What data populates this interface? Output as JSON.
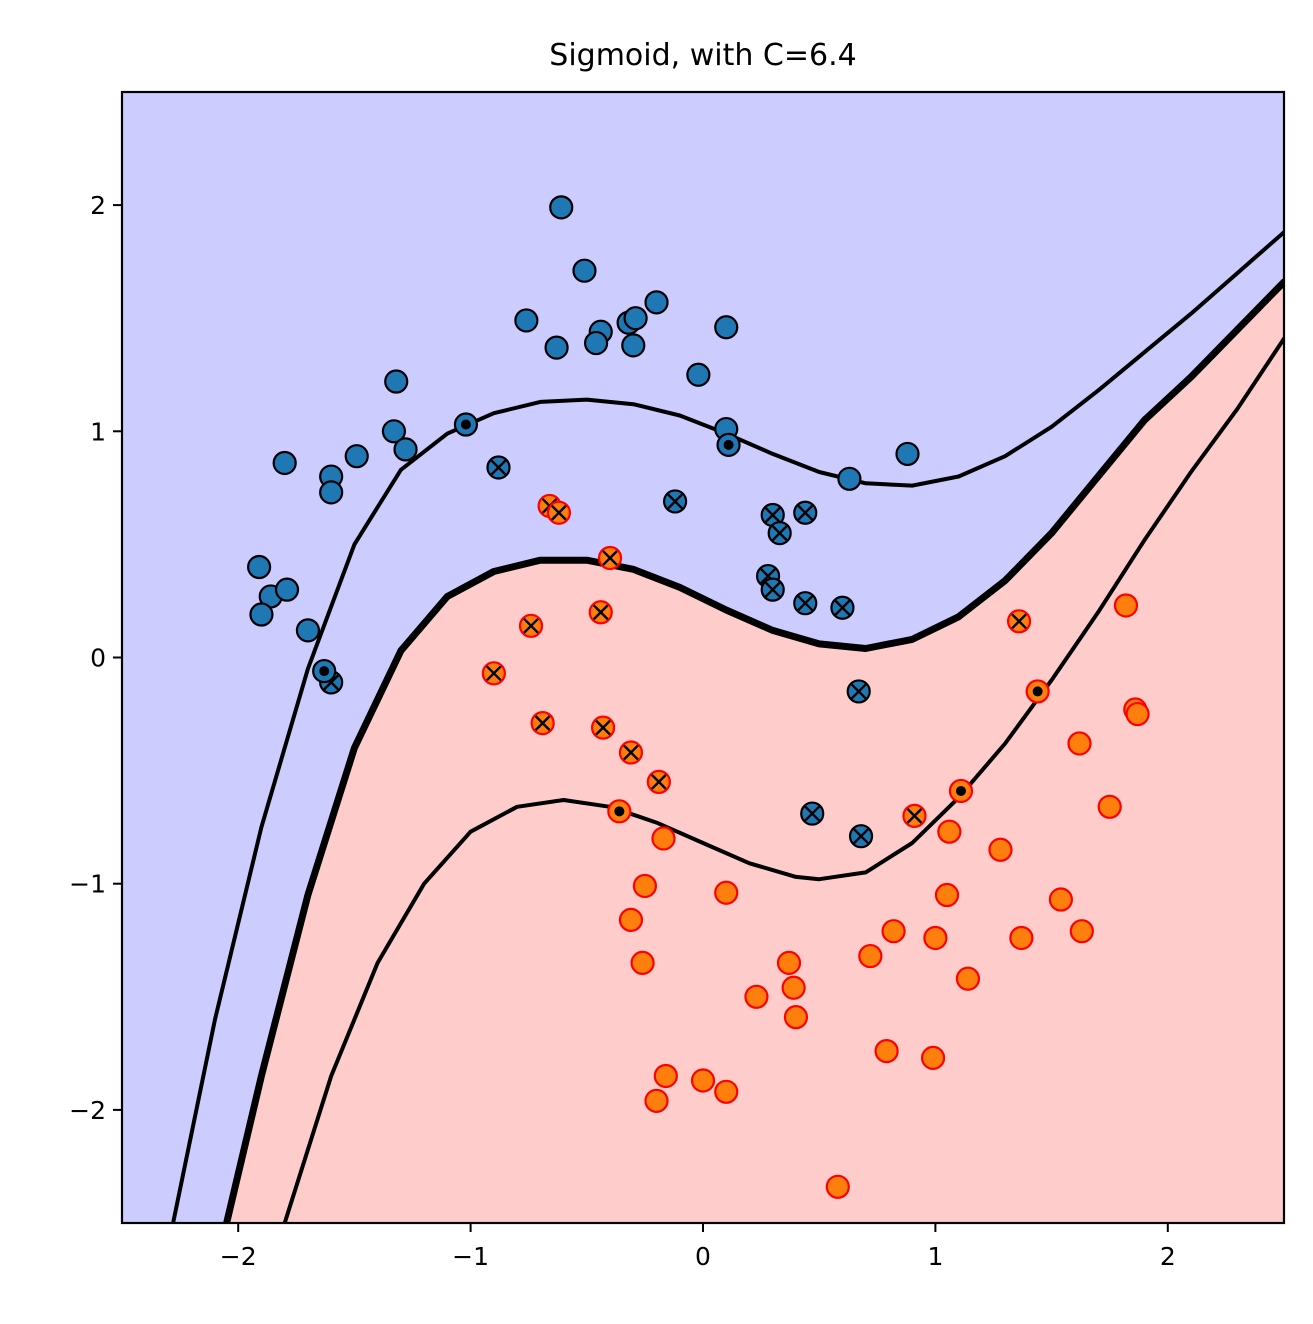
{
  "chart_data": {
    "type": "scatter",
    "title": "Sigmoid, with C=6.4",
    "xlabel": "",
    "ylabel": "",
    "xlim": [
      -2.5,
      2.5
    ],
    "ylim": [
      -2.5,
      2.5
    ],
    "x_ticks": [
      -2,
      -1,
      0,
      1,
      2
    ],
    "y_ticks": [
      -2,
      -1,
      0,
      1,
      2
    ],
    "x_tick_labels": [
      "−2",
      "−1",
      "0",
      "1",
      "2"
    ],
    "y_tick_labels": [
      "−2",
      "−1",
      "0",
      "1",
      "2"
    ],
    "grid": false,
    "colors": {
      "region_class_0": "#ccccff",
      "region_class_1": "#ffcccc",
      "class_0_point": "#1f77b4",
      "class_0_edge": "#000000",
      "class_1_point": "#ff7f0e",
      "class_1_edge": "#ff0000",
      "boundary": "#000000"
    },
    "regions": [
      {
        "class": 0,
        "side": "upper-left of decision boundary"
      },
      {
        "class": 1,
        "side": "lower-right of decision boundary"
      }
    ],
    "curves": [
      {
        "role": "margin-upper",
        "style": "thin",
        "points": [
          [
            -2.28,
            -2.5
          ],
          [
            -2.1,
            -1.6
          ],
          [
            -1.9,
            -0.75
          ],
          [
            -1.7,
            -0.05
          ],
          [
            -1.5,
            0.5
          ],
          [
            -1.3,
            0.83
          ],
          [
            -1.1,
            0.99
          ],
          [
            -0.9,
            1.08
          ],
          [
            -0.7,
            1.13
          ],
          [
            -0.5,
            1.14
          ],
          [
            -0.3,
            1.12
          ],
          [
            -0.1,
            1.07
          ],
          [
            0.1,
            0.99
          ],
          [
            0.3,
            0.9
          ],
          [
            0.5,
            0.82
          ],
          [
            0.7,
            0.77
          ],
          [
            0.9,
            0.76
          ],
          [
            1.1,
            0.8
          ],
          [
            1.3,
            0.89
          ],
          [
            1.5,
            1.02
          ],
          [
            1.7,
            1.18
          ],
          [
            1.9,
            1.35
          ],
          [
            2.1,
            1.52
          ],
          [
            2.3,
            1.7
          ],
          [
            2.5,
            1.88
          ]
        ]
      },
      {
        "role": "decision-boundary",
        "style": "thick",
        "points": [
          [
            -2.05,
            -2.5
          ],
          [
            -1.9,
            -1.85
          ],
          [
            -1.7,
            -1.05
          ],
          [
            -1.5,
            -0.4
          ],
          [
            -1.3,
            0.03
          ],
          [
            -1.1,
            0.27
          ],
          [
            -0.9,
            0.38
          ],
          [
            -0.7,
            0.43
          ],
          [
            -0.5,
            0.43
          ],
          [
            -0.3,
            0.39
          ],
          [
            -0.1,
            0.31
          ],
          [
            0.1,
            0.21
          ],
          [
            0.3,
            0.12
          ],
          [
            0.5,
            0.06
          ],
          [
            0.7,
            0.04
          ],
          [
            0.9,
            0.08
          ],
          [
            1.1,
            0.18
          ],
          [
            1.3,
            0.34
          ],
          [
            1.5,
            0.55
          ],
          [
            1.7,
            0.8
          ],
          [
            1.9,
            1.05
          ],
          [
            2.1,
            1.24
          ],
          [
            2.3,
            1.45
          ],
          [
            2.5,
            1.66
          ]
        ]
      },
      {
        "role": "margin-lower",
        "style": "thin",
        "points": [
          [
            -1.8,
            -2.5
          ],
          [
            -1.6,
            -1.85
          ],
          [
            -1.4,
            -1.35
          ],
          [
            -1.2,
            -1.0
          ],
          [
            -1.0,
            -0.77
          ],
          [
            -0.8,
            -0.66
          ],
          [
            -0.6,
            -0.63
          ],
          [
            -0.4,
            -0.66
          ],
          [
            -0.2,
            -0.73
          ],
          [
            0.0,
            -0.82
          ],
          [
            0.2,
            -0.91
          ],
          [
            0.4,
            -0.97
          ],
          [
            0.5,
            -0.98
          ],
          [
            0.7,
            -0.95
          ],
          [
            0.9,
            -0.82
          ],
          [
            1.1,
            -0.62
          ],
          [
            1.3,
            -0.38
          ],
          [
            1.5,
            -0.1
          ],
          [
            1.7,
            0.2
          ],
          [
            1.9,
            0.52
          ],
          [
            2.1,
            0.82
          ],
          [
            2.3,
            1.1
          ],
          [
            2.5,
            1.41
          ]
        ]
      }
    ],
    "series": [
      {
        "class": 0,
        "marker": "circle",
        "points": [
          [
            -0.61,
            1.99
          ],
          [
            -0.51,
            1.71
          ],
          [
            -0.2,
            1.57
          ],
          [
            -0.76,
            1.49
          ],
          [
            -0.32,
            1.48
          ],
          [
            -0.29,
            1.5
          ],
          [
            -0.44,
            1.44
          ],
          [
            -0.46,
            1.39
          ],
          [
            -0.3,
            1.38
          ],
          [
            -0.63,
            1.37
          ],
          [
            0.1,
            1.46
          ],
          [
            -0.02,
            1.25
          ],
          [
            -1.32,
            1.22
          ],
          [
            -1.33,
            1.0
          ],
          [
            -1.28,
            0.92
          ],
          [
            -1.49,
            0.89
          ],
          [
            -1.8,
            0.86
          ],
          [
            -1.6,
            0.8
          ],
          [
            -1.6,
            0.73
          ],
          [
            0.1,
            1.01
          ],
          [
            0.63,
            0.79
          ],
          [
            0.88,
            0.9
          ],
          [
            -1.91,
            0.4
          ],
          [
            -1.86,
            0.27
          ],
          [
            -1.79,
            0.3
          ],
          [
            -1.9,
            0.19
          ],
          [
            -1.7,
            0.12
          ]
        ]
      },
      {
        "class": 1,
        "marker": "circle",
        "points": [
          [
            1.82,
            0.23
          ],
          [
            1.86,
            -0.23
          ],
          [
            1.87,
            -0.25
          ],
          [
            1.62,
            -0.38
          ],
          [
            1.75,
            -0.66
          ],
          [
            1.06,
            -0.77
          ],
          [
            1.28,
            -0.85
          ],
          [
            -0.17,
            -0.8
          ],
          [
            -0.25,
            -1.01
          ],
          [
            0.1,
            -1.04
          ],
          [
            1.05,
            -1.05
          ],
          [
            1.54,
            -1.07
          ],
          [
            -0.31,
            -1.16
          ],
          [
            0.82,
            -1.21
          ],
          [
            1.63,
            -1.21
          ],
          [
            1.0,
            -1.24
          ],
          [
            1.37,
            -1.24
          ],
          [
            0.72,
            -1.32
          ],
          [
            -0.26,
            -1.35
          ],
          [
            0.37,
            -1.35
          ],
          [
            1.14,
            -1.42
          ],
          [
            0.39,
            -1.46
          ],
          [
            0.23,
            -1.5
          ],
          [
            0.4,
            -1.59
          ],
          [
            0.79,
            -1.74
          ],
          [
            0.99,
            -1.77
          ],
          [
            -0.16,
            -1.85
          ],
          [
            0.0,
            -1.87
          ],
          [
            0.1,
            -1.92
          ],
          [
            -0.2,
            -1.96
          ],
          [
            0.58,
            -2.34
          ]
        ]
      },
      {
        "class": 0,
        "marker": "support-vector-x",
        "points": [
          [
            -0.88,
            0.84
          ],
          [
            -0.12,
            0.69
          ],
          [
            0.3,
            0.63
          ],
          [
            0.44,
            0.64
          ],
          [
            0.33,
            0.55
          ],
          [
            0.28,
            0.36
          ],
          [
            0.3,
            0.3
          ],
          [
            0.44,
            0.24
          ],
          [
            0.6,
            0.22
          ],
          [
            0.67,
            -0.15
          ],
          [
            0.47,
            -0.69
          ],
          [
            0.68,
            -0.79
          ],
          [
            -1.6,
            -0.11
          ]
        ]
      },
      {
        "class": 1,
        "marker": "support-vector-x",
        "points": [
          [
            -0.66,
            0.67
          ],
          [
            -0.62,
            0.64
          ],
          [
            -0.4,
            0.44
          ],
          [
            -0.44,
            0.2
          ],
          [
            -0.74,
            0.14
          ],
          [
            -0.9,
            -0.07
          ],
          [
            -0.69,
            -0.29
          ],
          [
            -0.43,
            -0.31
          ],
          [
            -0.31,
            -0.42
          ],
          [
            -0.19,
            -0.55
          ],
          [
            0.91,
            -0.7
          ],
          [
            1.36,
            0.16
          ]
        ]
      },
      {
        "class": 0,
        "marker": "support-vector-dot",
        "points": [
          [
            -1.02,
            1.03
          ],
          [
            0.11,
            0.94
          ],
          [
            -1.63,
            -0.06
          ]
        ]
      },
      {
        "class": 1,
        "marker": "support-vector-dot",
        "points": [
          [
            -0.36,
            -0.68
          ],
          [
            1.11,
            -0.59
          ],
          [
            1.44,
            -0.15
          ]
        ]
      }
    ]
  }
}
